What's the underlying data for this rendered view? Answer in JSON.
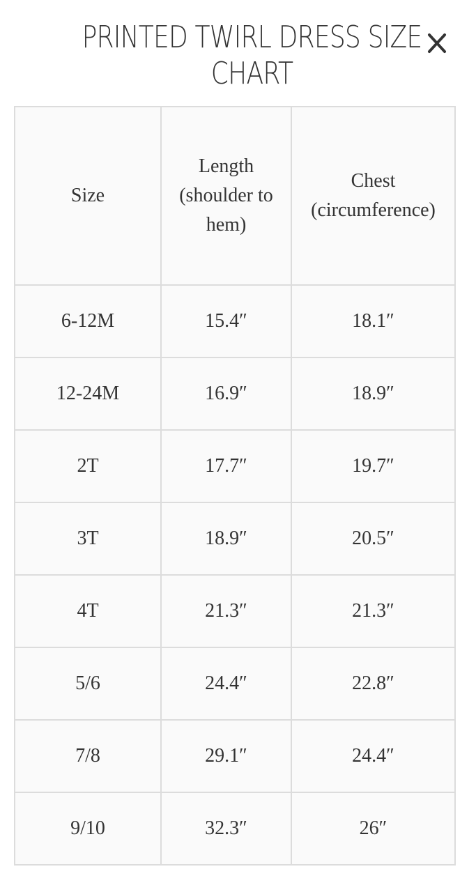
{
  "title": "PRINTED TWIRL DRESS SIZE CHART",
  "close_icon": "close-icon",
  "table": {
    "headers": [
      "Size",
      "Length (shoulder to hem)",
      "Chest (circumference)"
    ],
    "rows": [
      [
        "6-12M",
        "15.4″",
        "18.1″"
      ],
      [
        "12-24M",
        "16.9″",
        "18.9″"
      ],
      [
        "2T",
        "17.7″",
        "19.7″"
      ],
      [
        "3T",
        "18.9″",
        "20.5″"
      ],
      [
        "4T",
        "21.3″",
        "21.3″"
      ],
      [
        "5/6",
        "24.4″",
        "22.8″"
      ],
      [
        "7/8",
        "29.1″",
        "24.4″"
      ],
      [
        "9/10",
        "32.3″",
        "26″"
      ]
    ]
  },
  "colors": {
    "text": "#333333",
    "border": "#dcdcdc",
    "cell_bg": "#fafafa"
  }
}
